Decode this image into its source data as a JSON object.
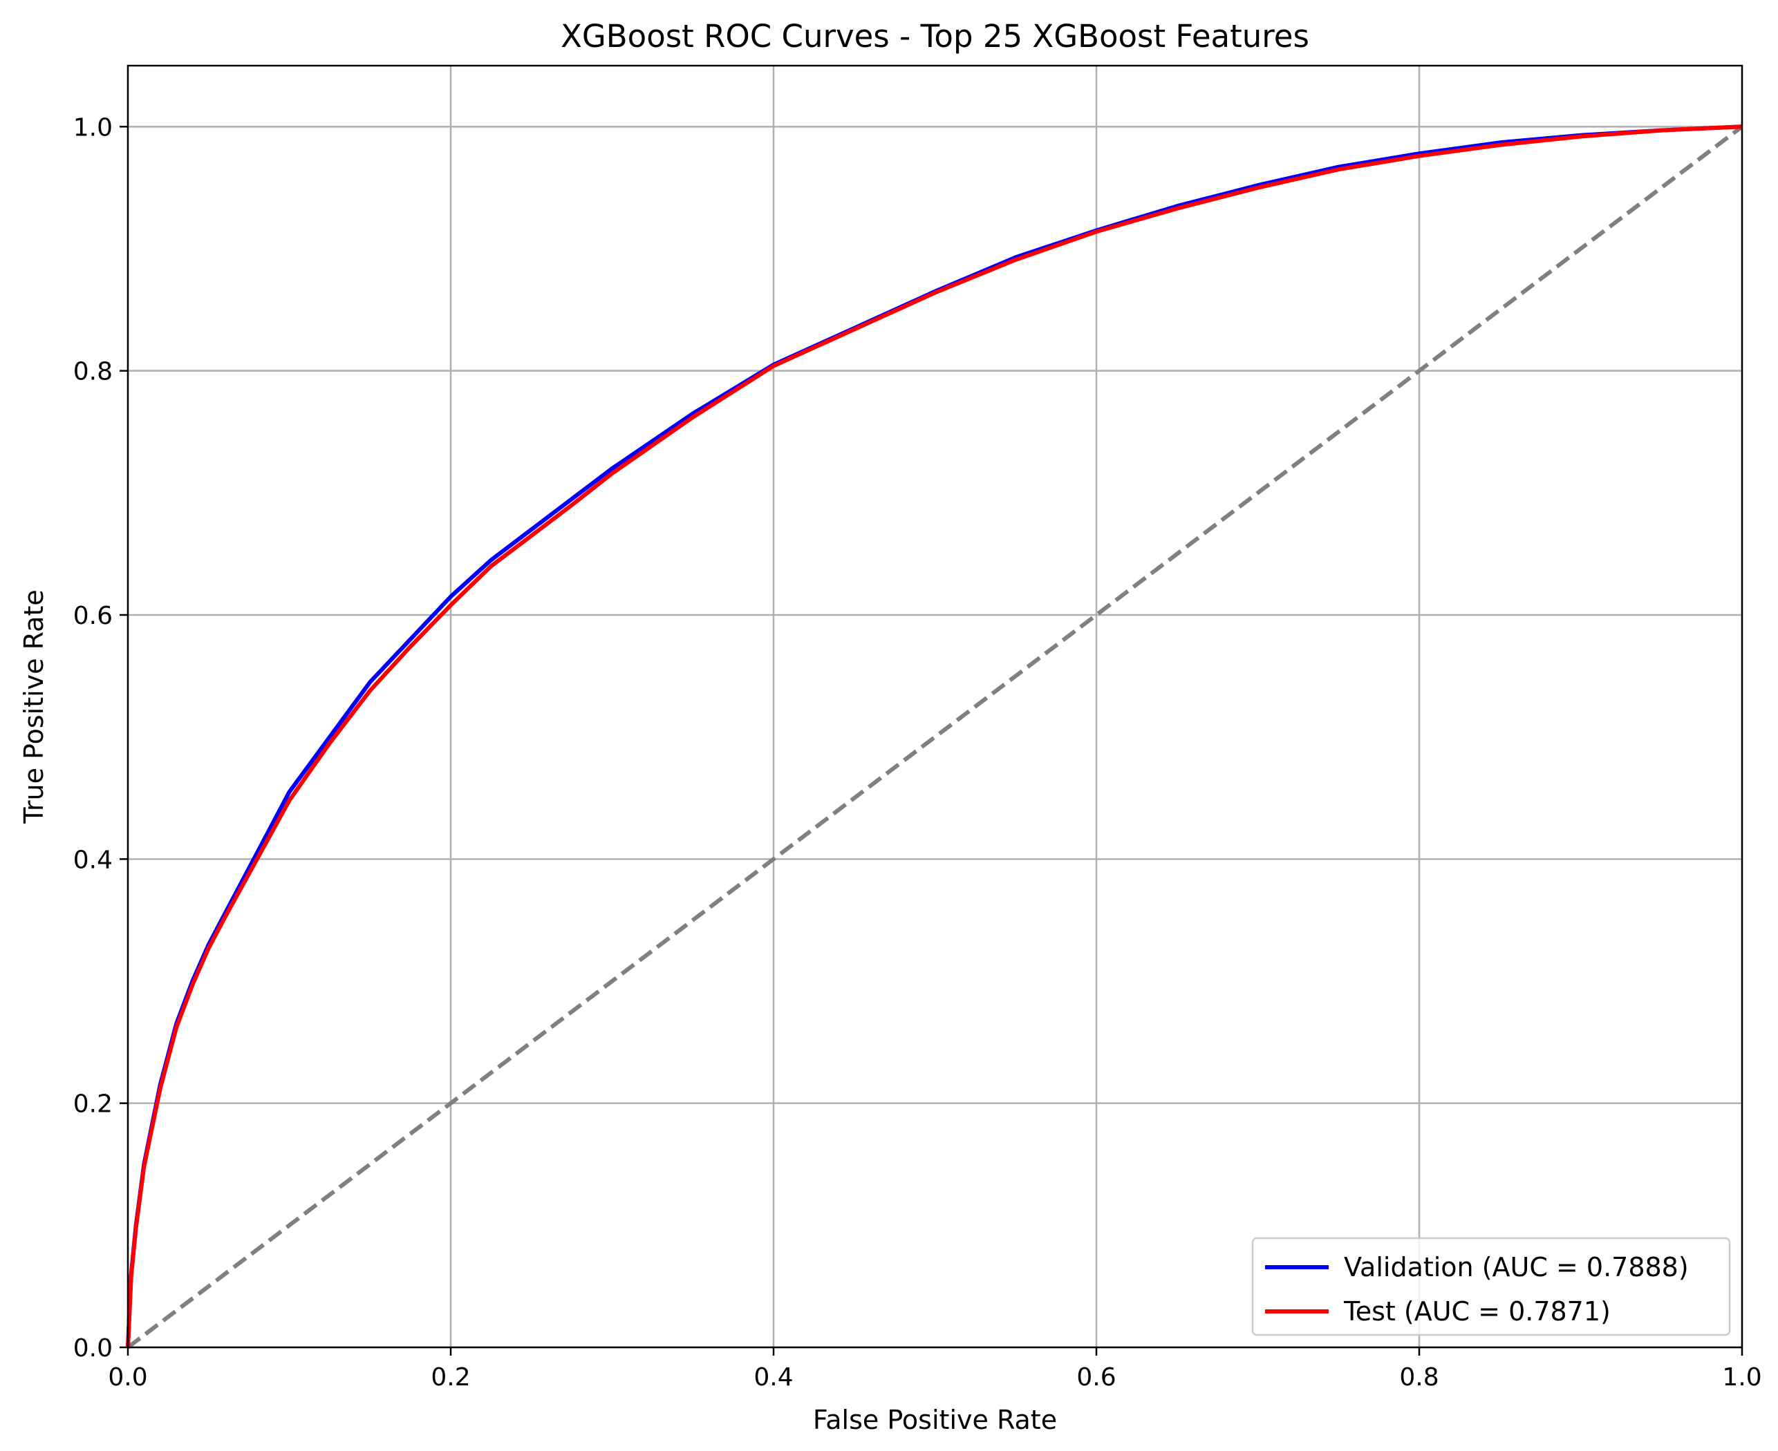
{
  "chart_data": {
    "type": "line",
    "title": "XGBoost ROC Curves - Top 25 XGBoost Features",
    "xlabel": "False Positive Rate",
    "ylabel": "True Positive Rate",
    "xlim": [
      0.0,
      1.0
    ],
    "ylim": [
      0.0,
      1.05
    ],
    "xticks": [
      0.0,
      0.2,
      0.4,
      0.6,
      0.8,
      1.0
    ],
    "xtick_labels": [
      "0.0",
      "0.2",
      "0.4",
      "0.6",
      "0.8",
      "1.0"
    ],
    "yticks": [
      0.0,
      0.2,
      0.4,
      0.6,
      0.8,
      1.0
    ],
    "ytick_labels": [
      "0.0",
      "0.2",
      "0.4",
      "0.6",
      "0.8",
      "1.0"
    ],
    "grid": true,
    "legend_position": "lower-right",
    "series": [
      {
        "name": "Validation (AUC = 0.7888)",
        "color": "#0000ff",
        "style": "solid",
        "x": [
          0.0,
          0.002,
          0.005,
          0.01,
          0.02,
          0.03,
          0.04,
          0.05,
          0.06,
          0.08,
          0.1,
          0.125,
          0.15,
          0.175,
          0.2,
          0.225,
          0.25,
          0.275,
          0.3,
          0.35,
          0.4,
          0.45,
          0.5,
          0.55,
          0.6,
          0.65,
          0.7,
          0.75,
          0.8,
          0.85,
          0.9,
          0.95,
          1.0
        ],
        "y": [
          0.0,
          0.06,
          0.1,
          0.15,
          0.215,
          0.265,
          0.3,
          0.33,
          0.355,
          0.405,
          0.455,
          0.5,
          0.545,
          0.58,
          0.615,
          0.645,
          0.67,
          0.695,
          0.72,
          0.765,
          0.805,
          0.835,
          0.865,
          0.893,
          0.915,
          0.935,
          0.952,
          0.967,
          0.978,
          0.987,
          0.993,
          0.997,
          1.0
        ]
      },
      {
        "name": "Test (AUC = 0.7871)",
        "color": "#ff0000",
        "style": "solid",
        "x": [
          0.0,
          0.002,
          0.005,
          0.01,
          0.02,
          0.03,
          0.04,
          0.05,
          0.06,
          0.08,
          0.1,
          0.125,
          0.15,
          0.175,
          0.2,
          0.225,
          0.25,
          0.275,
          0.3,
          0.35,
          0.4,
          0.45,
          0.5,
          0.55,
          0.6,
          0.65,
          0.7,
          0.75,
          0.8,
          0.85,
          0.9,
          0.95,
          1.0
        ],
        "y": [
          0.0,
          0.058,
          0.098,
          0.148,
          0.212,
          0.262,
          0.297,
          0.327,
          0.352,
          0.4,
          0.448,
          0.495,
          0.538,
          0.574,
          0.608,
          0.64,
          0.665,
          0.69,
          0.716,
          0.762,
          0.804,
          0.834,
          0.864,
          0.891,
          0.914,
          0.933,
          0.95,
          0.965,
          0.976,
          0.985,
          0.992,
          0.997,
          1.0
        ]
      },
      {
        "name": "",
        "color": "#808080",
        "style": "dashed",
        "x": [
          0.0,
          1.0
        ],
        "y": [
          0.0,
          1.0
        ]
      }
    ]
  }
}
